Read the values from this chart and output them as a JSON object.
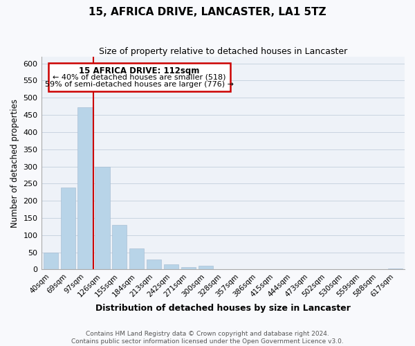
{
  "title": "15, AFRICA DRIVE, LANCASTER, LA1 5TZ",
  "subtitle": "Size of property relative to detached houses in Lancaster",
  "xlabel": "Distribution of detached houses by size in Lancaster",
  "ylabel": "Number of detached properties",
  "bar_color": "#b8d4e8",
  "marker_line_color": "#cc0000",
  "categories": [
    "40sqm",
    "69sqm",
    "97sqm",
    "126sqm",
    "155sqm",
    "184sqm",
    "213sqm",
    "242sqm",
    "271sqm",
    "300sqm",
    "328sqm",
    "357sqm",
    "386sqm",
    "415sqm",
    "444sqm",
    "473sqm",
    "502sqm",
    "530sqm",
    "559sqm",
    "588sqm",
    "617sqm"
  ],
  "values": [
    50,
    238,
    472,
    300,
    130,
    62,
    30,
    15,
    7,
    10,
    0,
    0,
    0,
    0,
    0,
    0,
    0,
    0,
    0,
    0,
    3
  ],
  "annotation_title": "15 AFRICA DRIVE: 112sqm",
  "annotation_line1": "← 40% of detached houses are smaller (518)",
  "annotation_line2": "59% of semi-detached houses are larger (776) →",
  "ylim": [
    0,
    620
  ],
  "yticks": [
    0,
    50,
    100,
    150,
    200,
    250,
    300,
    350,
    400,
    450,
    500,
    550,
    600
  ],
  "footer1": "Contains HM Land Registry data © Crown copyright and database right 2024.",
  "footer2": "Contains public sector information licensed under the Open Government Licence v3.0.",
  "background_color": "#f8f9fc",
  "plot_bg_color": "#eef2f8",
  "grid_color": "#c8d4e0"
}
